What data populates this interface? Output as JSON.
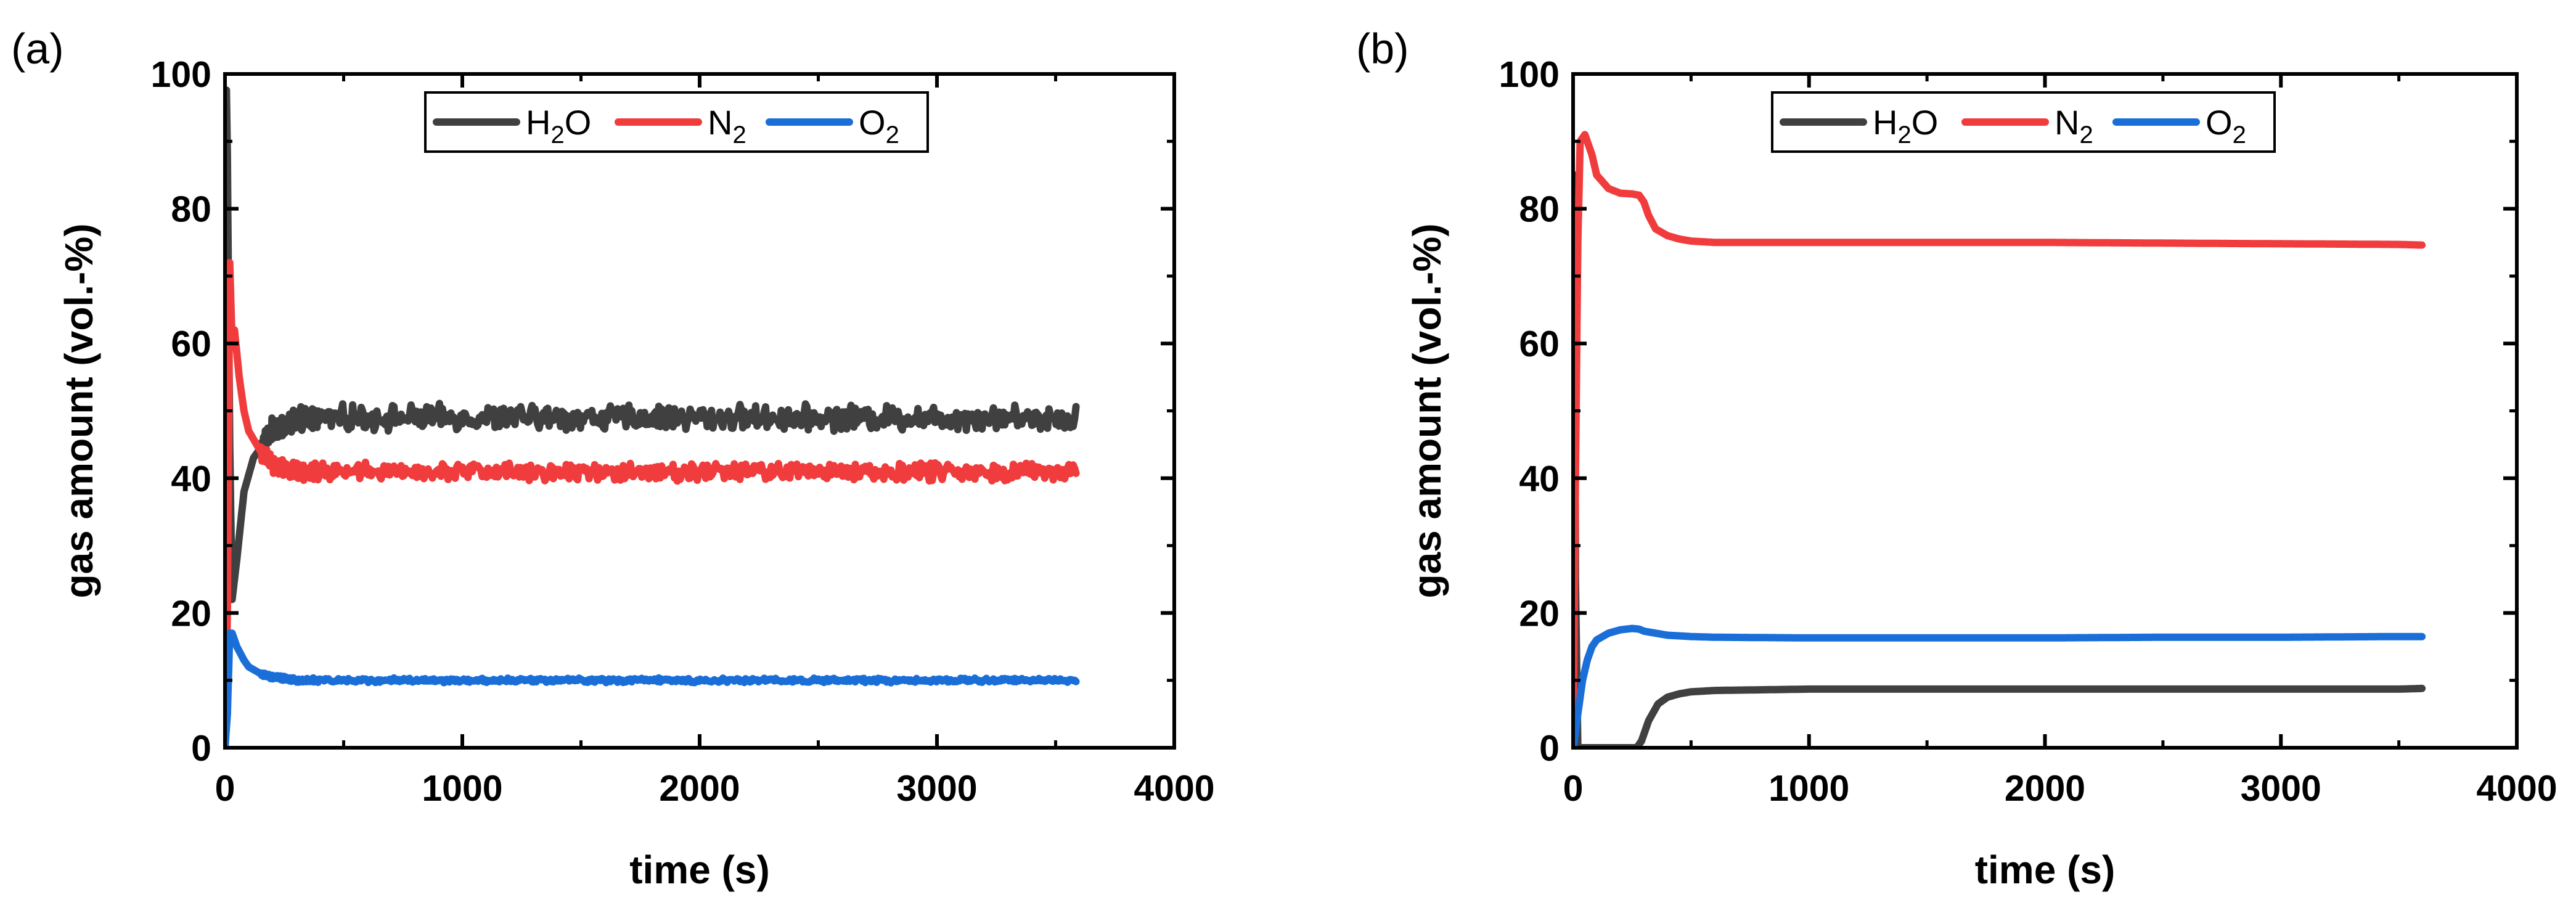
{
  "chart_data": [
    {
      "type": "line",
      "panel_label": "(a)",
      "xlabel": "time (s)",
      "ylabel": "gas amount (vol.-%)",
      "xlim": [
        0,
        4000
      ],
      "ylim": [
        0,
        100
      ],
      "xticks": [
        0,
        1000,
        2000,
        3000,
        4000
      ],
      "yticks": [
        0,
        20,
        40,
        60,
        80,
        100
      ],
      "grid": false,
      "legend_position": "top-center",
      "series": [
        {
          "name": "H2O",
          "label_main": "H",
          "label_sub": "2",
          "label_tail": "O",
          "color": "#404040",
          "x": [
            0,
            5,
            10,
            20,
            30,
            50,
            80,
            120,
            160,
            200,
            250,
            300,
            400,
            500,
            1000,
            1500,
            2000,
            2500,
            3000,
            3500,
            3590
          ],
          "y": [
            0,
            100,
            88,
            45,
            22,
            28,
            38,
            43,
            45,
            47,
            48,
            48.5,
            49,
            49,
            49,
            49,
            49,
            49,
            49,
            49,
            49
          ],
          "noise": 1.4
        },
        {
          "name": "N2",
          "label_main": "N",
          "label_sub": "2",
          "label_tail": "",
          "color": "#f03c3c",
          "x": [
            0,
            10,
            20,
            30,
            40,
            60,
            80,
            100,
            150,
            200,
            250,
            300,
            500,
            1000,
            1500,
            2000,
            2500,
            3000,
            3500,
            3590
          ],
          "y": [
            0,
            20,
            72,
            60,
            62,
            55,
            50,
            47,
            44,
            42,
            41.5,
            41,
            41,
            41,
            41,
            41,
            41,
            41,
            41,
            41
          ],
          "noise": 1.0
        },
        {
          "name": "O2",
          "label_main": "O",
          "label_sub": "2",
          "label_tail": "",
          "color": "#1a6ed8",
          "x": [
            0,
            10,
            20,
            30,
            50,
            80,
            100,
            150,
            200,
            300,
            500,
            1000,
            1500,
            2000,
            2500,
            3000,
            3500,
            3590
          ],
          "y": [
            0,
            5,
            17,
            17,
            15,
            13,
            12,
            11,
            10.5,
            10,
            10,
            10,
            10,
            10,
            10,
            10,
            10,
            10
          ],
          "noise": 0.25
        }
      ]
    },
    {
      "type": "line",
      "panel_label": "(b)",
      "xlabel": "time (s)",
      "ylabel": "gas amount (vol.-%)",
      "xlim": [
        0,
        4000
      ],
      "ylim": [
        0,
        100
      ],
      "xticks": [
        0,
        1000,
        2000,
        3000,
        4000
      ],
      "yticks": [
        0,
        20,
        40,
        60,
        80,
        100
      ],
      "grid": false,
      "legend_position": "top-center",
      "series": [
        {
          "name": "H2O",
          "label_main": "H",
          "label_sub": "2",
          "label_tail": "O",
          "color": "#404040",
          "x": [
            0,
            5,
            10,
            20,
            40,
            100,
            200,
            270,
            290,
            320,
            360,
            400,
            450,
            500,
            600,
            800,
            1000,
            1500,
            2000,
            2500,
            3000,
            3500,
            3600
          ],
          "y": [
            0,
            100,
            25,
            0,
            0,
            0,
            0,
            0,
            1,
            4,
            6.5,
            7.5,
            8,
            8.3,
            8.5,
            8.6,
            8.7,
            8.7,
            8.7,
            8.7,
            8.7,
            8.7,
            8.8
          ],
          "noise": 0
        },
        {
          "name": "N2",
          "label_main": "N",
          "label_sub": "2",
          "label_tail": "",
          "color": "#f03c3c",
          "x": [
            0,
            10,
            20,
            30,
            50,
            80,
            100,
            150,
            200,
            250,
            280,
            300,
            320,
            350,
            400,
            450,
            500,
            600,
            1000,
            1500,
            2000,
            2500,
            3000,
            3500,
            3600
          ],
          "y": [
            0,
            40,
            75,
            90,
            91,
            88,
            85,
            83,
            82.3,
            82.2,
            82,
            81,
            79,
            77,
            76,
            75.5,
            75.2,
            75,
            75,
            75,
            75,
            74.9,
            74.8,
            74.7,
            74.6
          ],
          "noise": 0
        },
        {
          "name": "O2",
          "label_main": "O",
          "label_sub": "2",
          "label_tail": "",
          "color": "#1a6ed8",
          "x": [
            0,
            5,
            20,
            40,
            60,
            80,
            100,
            150,
            200,
            250,
            280,
            300,
            350,
            400,
            500,
            600,
            1000,
            1500,
            2000,
            2500,
            3000,
            3500,
            3600
          ],
          "y": [
            0,
            1,
            5,
            10,
            13,
            15,
            16,
            17,
            17.5,
            17.7,
            17.6,
            17.3,
            17,
            16.7,
            16.5,
            16.4,
            16.3,
            16.3,
            16.3,
            16.4,
            16.4,
            16.5,
            16.5
          ],
          "noise": 0
        }
      ]
    }
  ]
}
